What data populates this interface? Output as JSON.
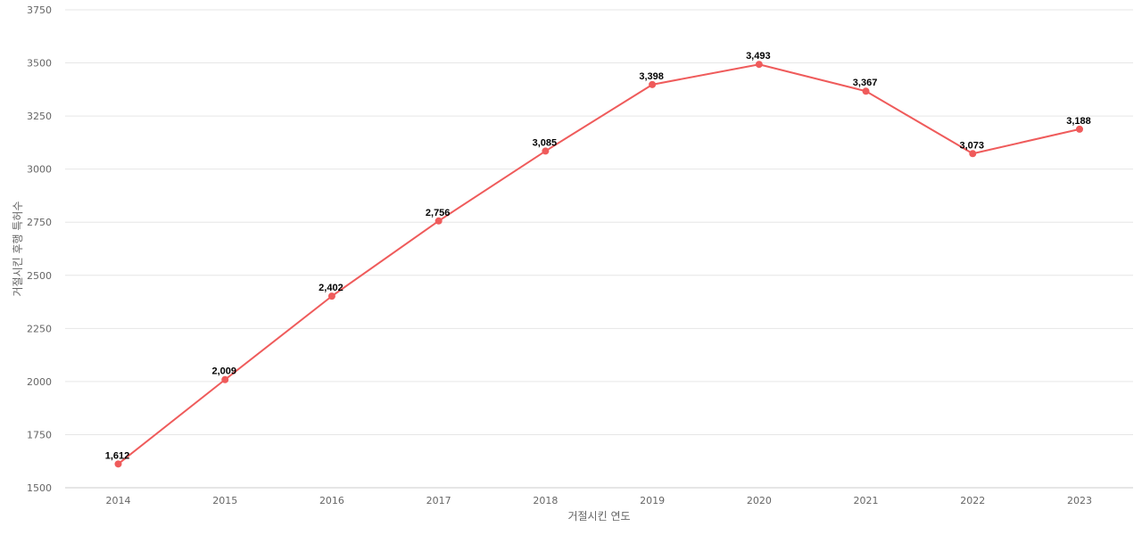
{
  "chart_data": {
    "type": "line",
    "title": "",
    "xlabel": "거절시킨 연도",
    "ylabel": "거절시킨 후행 특허수",
    "x": [
      "2014",
      "2015",
      "2016",
      "2017",
      "2018",
      "2019",
      "2020",
      "2021",
      "2022",
      "2023"
    ],
    "series": [
      {
        "color": "#ef5b5b",
        "values": [
          1612,
          2009,
          2402,
          2756,
          3085,
          3398,
          3493,
          3367,
          3073,
          3188
        ],
        "labels": [
          "1,612",
          "2,009",
          "2,402",
          "2,756",
          "3,085",
          "3,398",
          "3,493",
          "3,367",
          "3,073",
          "3,188"
        ]
      }
    ],
    "ylim": [
      1500,
      3750
    ],
    "yticks": [
      "1500",
      "1750",
      "2000",
      "2250",
      "2500",
      "2750",
      "3000",
      "3250",
      "3500",
      "3750"
    ],
    "grid": true,
    "legend": "none"
  }
}
